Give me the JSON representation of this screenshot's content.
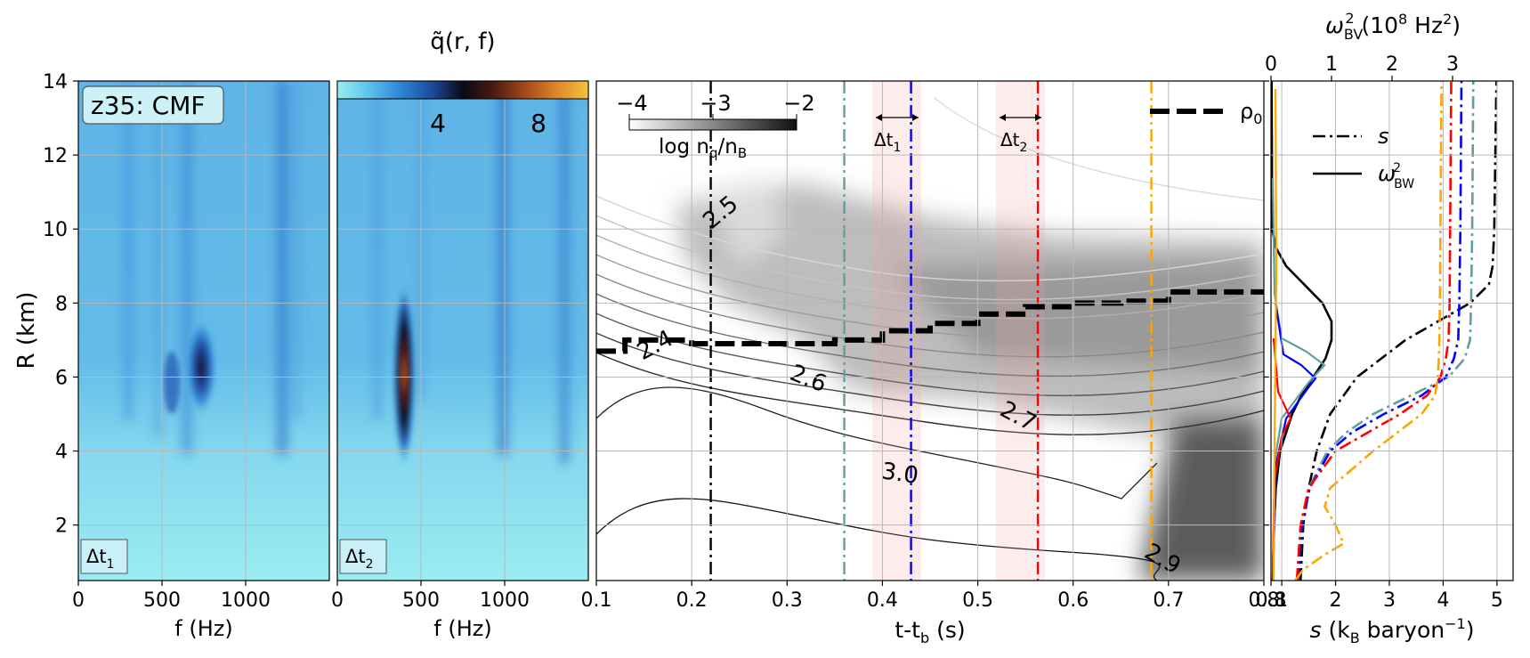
{
  "chart_data": [
    {
      "type": "heatmap",
      "panel": "spectrogram-dt1",
      "ylabel": "R (km)",
      "xlabel": "f (Hz)",
      "xlim": [
        0,
        1500
      ],
      "ylim": [
        0.5,
        14
      ],
      "x_ticks": [
        "0",
        "500",
        "1000"
      ],
      "y_ticks": [
        "2",
        "4",
        "6",
        "8",
        "10",
        "12",
        "14"
      ],
      "annotation": "z35: CMF",
      "window_label": "Δt",
      "window_sub": "1",
      "peak": {
        "f": 730,
        "r": 6.0
      }
    },
    {
      "type": "heatmap",
      "panel": "spectrogram-dt2",
      "title_main": "q̃(r, f)",
      "xlabel": "f (Hz)",
      "xlim": [
        0,
        1500
      ],
      "x_ticks": [
        "0",
        "500",
        "1000"
      ],
      "colorbar_ticks": [
        "4",
        "8"
      ],
      "window_label": "Δt",
      "window_sub": "2",
      "peak": {
        "f": 400,
        "r": 5.5
      }
    },
    {
      "type": "heatmap",
      "panel": "quark-fraction-evolution",
      "xlabel": "t-t",
      "xlabel_sub": "b",
      "xlabel_unit": " (s)",
      "xlim": [
        0.1,
        0.8
      ],
      "ylim": [
        0.5,
        14
      ],
      "x_ticks": [
        "0.1",
        "0.2",
        "0.3",
        "0.4",
        "0.5",
        "0.6",
        "0.7",
        "0.8"
      ],
      "colorbar_label": "log n",
      "colorbar_label_sub1": "q",
      "colorbar_label_mid": "/n",
      "colorbar_label_sub2": "B",
      "colorbar_ticks": [
        "−4",
        "−3",
        "−2"
      ],
      "legend": "ρ",
      "legend_sub": "0",
      "contour_labels": [
        "2.4",
        "2.5",
        "2.6",
        "2.7",
        "2.9",
        "3.0"
      ],
      "windows": [
        {
          "label": "Δt",
          "sub": "1",
          "t0": 0.39,
          "t1": 0.44
        },
        {
          "label": "Δt",
          "sub": "2",
          "t0": 0.52,
          "t1": 0.57
        }
      ],
      "vlines": [
        {
          "t": 0.22,
          "color": "#000000"
        },
        {
          "t": 0.36,
          "color": "#5f9ea0"
        },
        {
          "t": 0.43,
          "color": "#0000ff"
        },
        {
          "t": 0.563,
          "color": "#ff0000"
        },
        {
          "t": 0.682,
          "color": "#ffa500"
        }
      ],
      "rho0": {
        "t": [
          0.1,
          0.13,
          0.2,
          0.3,
          0.35,
          0.4,
          0.45,
          0.5,
          0.55,
          0.6,
          0.65,
          0.7,
          0.75,
          0.8
        ],
        "r": [
          6.7,
          7.0,
          6.9,
          6.9,
          7.0,
          7.25,
          7.45,
          7.7,
          7.9,
          8.0,
          8.05,
          8.3,
          8.3,
          8.3
        ]
      }
    },
    {
      "type": "line",
      "panel": "entropy-bv-frequency",
      "xlabel_s": "s",
      "xlabel_rest": " (k",
      "xlabel_sub": "B",
      "xlabel_tail": " baryon",
      "xlabel_sup": "−1",
      "xlabel_close": ")",
      "top_label": "ω",
      "top_label_sub": "BV",
      "top_label_sup": "2",
      "top_label_unit": " (10",
      "top_label_exp": "8",
      "top_label_units": " Hz",
      "top_label_units_sup": "2",
      "top_label_close": ")",
      "xlim_s": [
        0.8,
        5.3
      ],
      "xlim_bv": [
        0,
        4.0
      ],
      "x_ticks_bottom": [
        "0.8",
        "1",
        "2",
        "3",
        "4",
        "5"
      ],
      "x_ticks_top": [
        "0",
        "1",
        "2",
        "3"
      ],
      "legend": [
        {
          "name": "s",
          "style": "dashdot"
        },
        {
          "name": "ω",
          "name_sub": "BW",
          "name_sup": "2",
          "style": "solid"
        }
      ],
      "series": [
        {
          "color": "#000000",
          "s": {
            "r": [
              0.5,
              2,
              3,
              4,
              5,
              6,
              7,
              7.5,
              8,
              8.5,
              9,
              10,
              11,
              12,
              13,
              14
            ],
            "v": [
              1.35,
              1.4,
              1.5,
              1.65,
              1.9,
              2.4,
              3.3,
              3.9,
              4.5,
              4.85,
              4.92,
              4.95,
              4.96,
              4.97,
              4.98,
              4.99
            ]
          }
        },
        {
          "color": "#5f9ea0",
          "s": {
            "r": [
              0.5,
              2,
              3,
              4,
              4.5,
              5,
              5.5,
              6,
              6.5,
              7,
              8,
              10,
              12,
              14
            ],
            "v": [
              1.3,
              1.38,
              1.5,
              1.85,
              2.2,
              2.7,
              3.4,
              4.1,
              4.4,
              4.5,
              4.52,
              4.54,
              4.55,
              4.56
            ]
          }
        },
        {
          "color": "#0000ff",
          "s": {
            "r": [
              0.5,
              2,
              3,
              4,
              4.5,
              5,
              5.5,
              6,
              6.5,
              7,
              8,
              10,
              12,
              14
            ],
            "v": [
              1.3,
              1.38,
              1.52,
              1.9,
              2.3,
              2.9,
              3.6,
              4.05,
              4.2,
              4.28,
              4.3,
              4.32,
              4.33,
              4.34
            ]
          }
        },
        {
          "color": "#ff0000",
          "s": {
            "r": [
              0.5,
              2,
              3,
              4,
              4.5,
              5,
              5.5,
              6,
              6.5,
              7,
              8,
              10,
              12,
              14
            ],
            "v": [
              1.28,
              1.35,
              1.5,
              2.0,
              2.6,
              3.2,
              3.7,
              3.95,
              4.05,
              4.1,
              4.12,
              4.13,
              4.14,
              4.15
            ]
          }
        },
        {
          "color": "#ffa500",
          "s": {
            "r": [
              0.5,
              0.8,
              1.2,
              1.5,
              2,
              2.5,
              3,
              4,
              5,
              5.5,
              6,
              6.5,
              7,
              8,
              10,
              12,
              14
            ],
            "v": [
              1.25,
              1.4,
              1.8,
              2.15,
              2.0,
              1.8,
              1.9,
              2.7,
              3.6,
              3.85,
              3.9,
              3.92,
              3.93,
              3.94,
              3.95,
              3.96,
              3.97
            ]
          }
        }
      ],
      "bv_curves": [
        {
          "color": "#000000",
          "r": [
            0.5,
            2,
            3,
            4,
            5,
            5.5,
            6,
            6.5,
            7,
            7.5,
            8,
            8.5,
            9,
            9.5,
            10,
            14
          ],
          "v": [
            0.03,
            0.05,
            0.08,
            0.15,
            0.35,
            0.5,
            0.7,
            0.9,
            1.0,
            1.0,
            0.85,
            0.55,
            0.25,
            0.08,
            0.02,
            0.01
          ]
        }
      ]
    }
  ]
}
